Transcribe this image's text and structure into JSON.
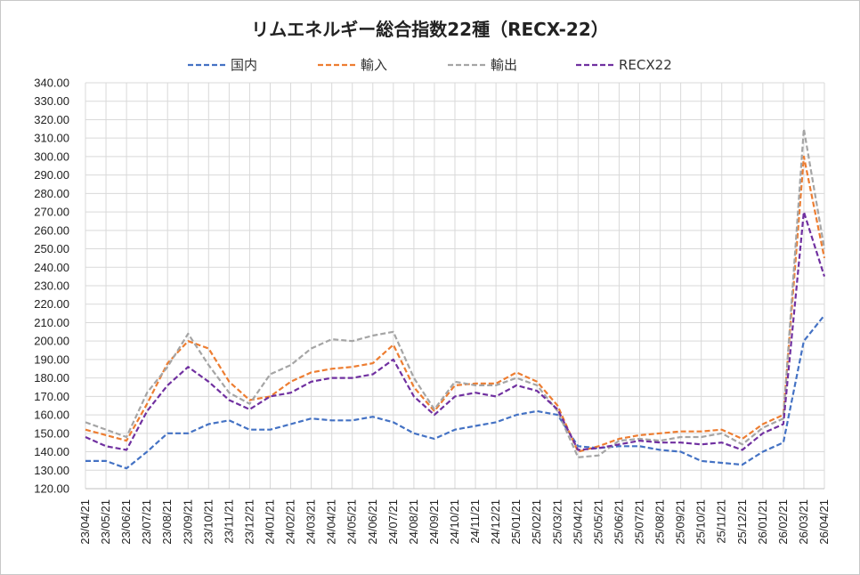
{
  "chart_data": {
    "type": "line",
    "title": "リムエネルギー総合指数22種（RECX-22）",
    "xlabel": "",
    "ylabel": "",
    "ylim": [
      120,
      340
    ],
    "yticks": [
      "120.00",
      "130.00",
      "140.00",
      "150.00",
      "160.00",
      "170.00",
      "180.00",
      "190.00",
      "200.00",
      "210.00",
      "220.00",
      "230.00",
      "240.00",
      "250.00",
      "260.00",
      "270.00",
      "280.00",
      "290.00",
      "300.00",
      "310.00",
      "320.00",
      "330.00",
      "340.00"
    ],
    "x": [
      "23/04/21",
      "23/05/21",
      "23/06/21",
      "23/07/21",
      "23/08/21",
      "23/09/21",
      "23/10/21",
      "23/11/21",
      "23/12/21",
      "24/01/21",
      "24/02/21",
      "24/03/21",
      "24/04/21",
      "24/05/21",
      "24/06/21",
      "24/07/21",
      "24/08/21",
      "24/09/21",
      "24/10/21",
      "24/11/21",
      "24/12/21",
      "25/01/21",
      "25/02/21",
      "25/03/21",
      "25/04/21",
      "25/05/21",
      "25/06/21",
      "25/07/21",
      "25/08/21",
      "25/09/21",
      "25/10/21",
      "25/11/21",
      "25/12/21",
      "26/01/21",
      "26/02/21",
      "26/03/21",
      "26/04/21"
    ],
    "grid": true,
    "legend": "top",
    "series": [
      {
        "name": "国内",
        "color": "#4472c4",
        "values": [
          135,
          135,
          131,
          140,
          150,
          150,
          155,
          157,
          152,
          152,
          155,
          158,
          157,
          157,
          159,
          156,
          150,
          147,
          152,
          154,
          156,
          160,
          162,
          160,
          143,
          142,
          143,
          143,
          141,
          140,
          135,
          134,
          133,
          140,
          145,
          200,
          214
        ]
      },
      {
        "name": "輸入",
        "color": "#ed7d31",
        "values": [
          152,
          149,
          146,
          166,
          188,
          200,
          196,
          178,
          168,
          170,
          178,
          183,
          185,
          186,
          188,
          198,
          175,
          162,
          176,
          177,
          177,
          183,
          178,
          165,
          140,
          143,
          147,
          149,
          150,
          151,
          151,
          152,
          147,
          155,
          160,
          300,
          245
        ]
      },
      {
        "name": "輸出",
        "color": "#a5a5a5",
        "values": [
          156,
          152,
          148,
          172,
          186,
          204,
          187,
          172,
          166,
          182,
          187,
          196,
          201,
          200,
          203,
          205,
          180,
          163,
          178,
          176,
          176,
          180,
          176,
          162,
          137,
          138,
          146,
          147,
          146,
          148,
          148,
          150,
          144,
          153,
          158,
          315,
          250
        ]
      },
      {
        "name": "RECX22",
        "color": "#7030a0",
        "values": [
          148,
          143,
          141,
          162,
          176,
          186,
          178,
          168,
          163,
          170,
          172,
          178,
          180,
          180,
          182,
          190,
          170,
          160,
          170,
          172,
          170,
          176,
          173,
          163,
          141,
          142,
          144,
          146,
          145,
          145,
          144,
          145,
          141,
          150,
          155,
          270,
          235
        ]
      }
    ]
  }
}
